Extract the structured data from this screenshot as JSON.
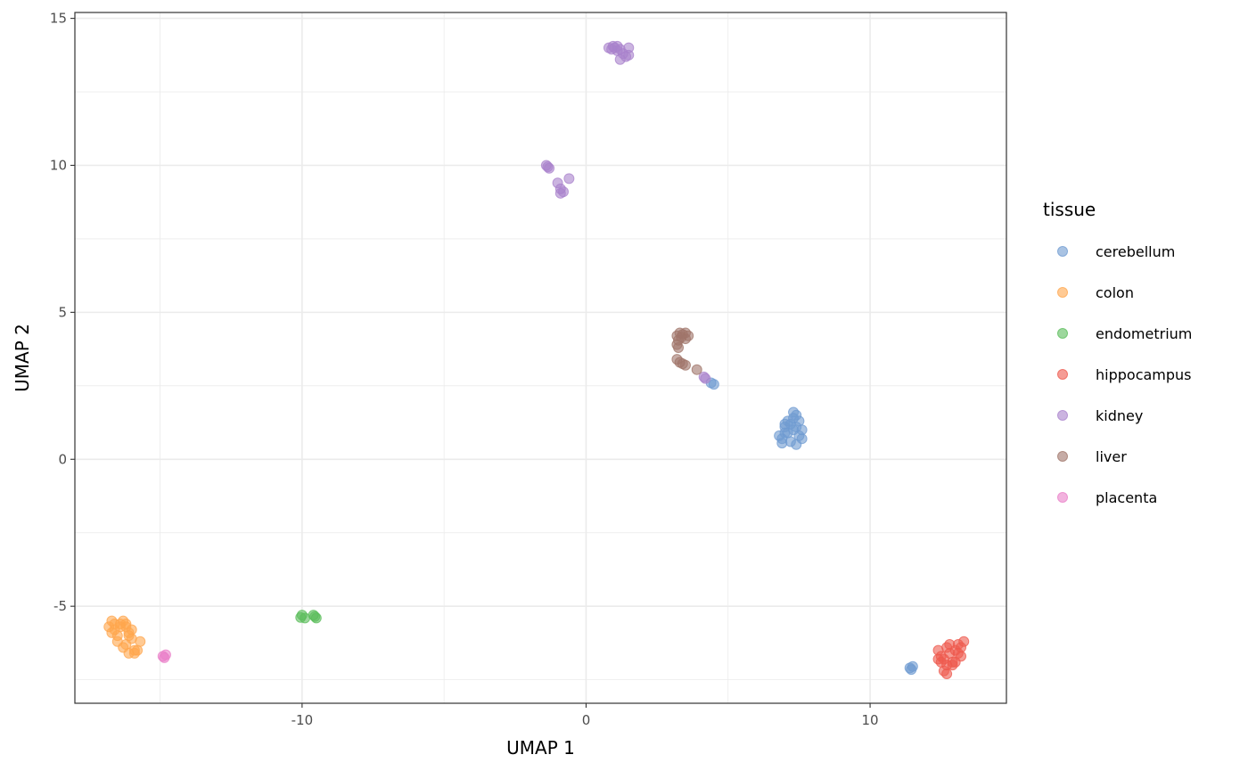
{
  "chart_data": {
    "type": "scatter",
    "title": "",
    "xlabel": "UMAP 1",
    "ylabel": "UMAP 2",
    "xlim": [
      -18,
      14.8
    ],
    "ylim": [
      -8.3,
      15.2
    ],
    "x_ticks": [
      -10,
      0,
      10
    ],
    "x_tick_labels": [
      "-10",
      "0",
      "10"
    ],
    "y_ticks": [
      -5,
      0,
      5,
      10,
      15
    ],
    "y_tick_labels": [
      "-5",
      "0",
      "5",
      "10",
      "15"
    ],
    "grid": true,
    "legend": {
      "title": "tissue",
      "position": "right"
    },
    "series": [
      {
        "name": "cerebellum",
        "color": "#6f9bd1",
        "points": [
          [
            6.8,
            0.8
          ],
          [
            6.9,
            0.7
          ],
          [
            7.0,
            0.9
          ],
          [
            7.0,
            1.1
          ],
          [
            7.1,
            1.3
          ],
          [
            7.2,
            1.2
          ],
          [
            7.3,
            1.4
          ],
          [
            7.4,
            1.5
          ],
          [
            7.3,
            1.0
          ],
          [
            7.5,
            0.8
          ],
          [
            7.6,
            1.0
          ],
          [
            7.2,
            0.6
          ],
          [
            7.4,
            0.5
          ],
          [
            7.6,
            0.7
          ],
          [
            7.1,
            0.9
          ],
          [
            7.5,
            1.3
          ],
          [
            7.3,
            1.6
          ],
          [
            6.9,
            0.55
          ],
          [
            7.0,
            1.2
          ],
          [
            7.4,
            1.1
          ],
          [
            4.5,
            2.55
          ],
          [
            4.4,
            2.6
          ],
          [
            11.4,
            -7.1
          ],
          [
            11.5,
            -7.05
          ],
          [
            11.45,
            -7.15
          ]
        ]
      },
      {
        "name": "colon",
        "color": "#ffa64d",
        "points": [
          [
            -16.8,
            -5.7
          ],
          [
            -16.7,
            -5.5
          ],
          [
            -16.6,
            -5.8
          ],
          [
            -16.5,
            -6.0
          ],
          [
            -16.4,
            -5.6
          ],
          [
            -16.3,
            -5.5
          ],
          [
            -16.2,
            -5.7
          ],
          [
            -16.1,
            -5.9
          ],
          [
            -16.0,
            -6.1
          ],
          [
            -16.2,
            -6.3
          ],
          [
            -16.1,
            -6.6
          ],
          [
            -15.9,
            -6.5
          ],
          [
            -15.8,
            -6.5
          ],
          [
            -15.7,
            -6.2
          ],
          [
            -16.5,
            -6.2
          ],
          [
            -16.3,
            -6.4
          ],
          [
            -16.4,
            -5.7
          ],
          [
            -16.0,
            -5.8
          ],
          [
            -15.9,
            -6.6
          ],
          [
            -16.6,
            -5.6
          ],
          [
            -16.2,
            -5.6
          ],
          [
            -16.7,
            -5.9
          ],
          [
            -16.1,
            -6.0
          ]
        ]
      },
      {
        "name": "endometrium",
        "color": "#5bbd5b",
        "points": [
          [
            -10.0,
            -5.3
          ],
          [
            -9.9,
            -5.4
          ],
          [
            -10.05,
            -5.38
          ],
          [
            -9.6,
            -5.3
          ],
          [
            -9.5,
            -5.4
          ],
          [
            -9.55,
            -5.35
          ]
        ]
      },
      {
        "name": "hippocampus",
        "color": "#ee5a4e",
        "points": [
          [
            12.4,
            -6.5
          ],
          [
            12.5,
            -6.7
          ],
          [
            12.6,
            -6.8
          ],
          [
            12.7,
            -6.4
          ],
          [
            12.8,
            -6.6
          ],
          [
            12.9,
            -6.9
          ],
          [
            13.0,
            -6.5
          ],
          [
            13.1,
            -6.3
          ],
          [
            13.2,
            -6.7
          ],
          [
            13.3,
            -6.2
          ],
          [
            12.6,
            -7.2
          ],
          [
            12.7,
            -7.3
          ],
          [
            12.9,
            -7.0
          ],
          [
            12.5,
            -6.9
          ],
          [
            13.2,
            -6.4
          ],
          [
            12.8,
            -6.3
          ],
          [
            12.4,
            -6.8
          ],
          [
            13.0,
            -6.9
          ],
          [
            12.7,
            -7.0
          ],
          [
            13.1,
            -6.6
          ]
        ]
      },
      {
        "name": "kidney",
        "color": "#a982cc",
        "points": [
          [
            0.8,
            14.0
          ],
          [
            0.9,
            13.95
          ],
          [
            1.0,
            14.0
          ],
          [
            1.1,
            14.05
          ],
          [
            1.2,
            13.95
          ],
          [
            1.3,
            13.8
          ],
          [
            1.4,
            13.7
          ],
          [
            1.5,
            14.0
          ],
          [
            1.2,
            13.6
          ],
          [
            1.5,
            13.75
          ],
          [
            1.1,
            13.9
          ],
          [
            0.95,
            14.05
          ],
          [
            -1.4,
            10.0
          ],
          [
            -1.3,
            9.9
          ],
          [
            -1.0,
            9.4
          ],
          [
            -0.9,
            9.2
          ],
          [
            -0.8,
            9.1
          ],
          [
            -0.9,
            9.05
          ],
          [
            -0.6,
            9.55
          ],
          [
            -1.35,
            9.95
          ],
          [
            4.15,
            2.8
          ],
          [
            4.2,
            2.75
          ]
        ]
      },
      {
        "name": "liver",
        "color": "#a0756a",
        "points": [
          [
            3.2,
            4.2
          ],
          [
            3.3,
            4.3
          ],
          [
            3.4,
            4.25
          ],
          [
            3.5,
            4.3
          ],
          [
            3.6,
            4.2
          ],
          [
            3.5,
            4.1
          ],
          [
            3.2,
            3.9
          ],
          [
            3.25,
            3.8
          ],
          [
            3.2,
            3.4
          ],
          [
            3.3,
            3.3
          ],
          [
            3.4,
            3.25
          ],
          [
            3.5,
            3.2
          ],
          [
            3.9,
            3.05
          ],
          [
            3.25,
            4.05
          ],
          [
            3.35,
            4.15
          ]
        ]
      },
      {
        "name": "placenta",
        "color": "#ea7fc8",
        "points": [
          [
            -14.9,
            -6.7
          ],
          [
            -14.8,
            -6.65
          ],
          [
            -14.85,
            -6.75
          ]
        ]
      }
    ]
  }
}
